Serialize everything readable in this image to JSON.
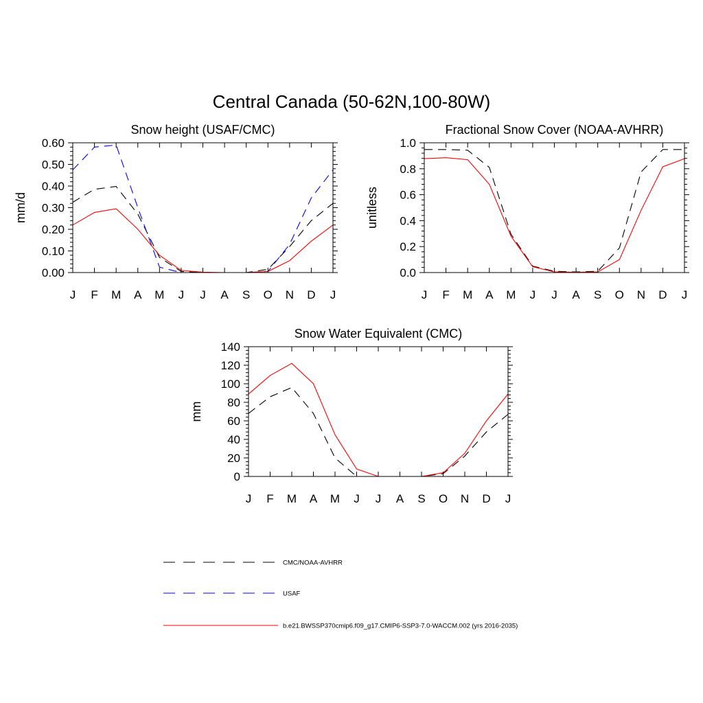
{
  "page": {
    "title": "Central Canada (50-62N,100-80W)"
  },
  "legend": [
    {
      "label": "CMC/NOAA-AVHRR",
      "color": "#000000",
      "dash": "dashed"
    },
    {
      "label": "USAF",
      "color": "#0000ff",
      "dash": "dashed"
    },
    {
      "label": "b.e21.BWSSP370cmip6.f09_g17.CMIP6-SSP3-7.0-WACCM.002 (yrs 2016-2035)",
      "color": "#ff0000",
      "dash": "solid"
    }
  ],
  "chart_data": [
    {
      "type": "line",
      "title": "Snow height (USAF/CMC)",
      "xlabel": "",
      "ylabel": "mm/d",
      "categories": [
        "J",
        "F",
        "M",
        "A",
        "M",
        "J",
        "J",
        "A",
        "S",
        "O",
        "N",
        "D",
        "J"
      ],
      "ylim": [
        0,
        0.6
      ],
      "yticks": [
        0,
        0.1,
        0.2,
        0.3,
        0.4,
        0.5,
        0.6
      ],
      "ytick_labels": [
        "0.00",
        "0.10",
        "0.20",
        "0.30",
        "0.40",
        "0.50",
        "0.60"
      ],
      "series": [
        {
          "name": "CMC/NOAA-AVHRR",
          "color": "#000000",
          "dash": "dashed",
          "values": [
            0.325,
            0.385,
            0.398,
            0.27,
            0.07,
            0.005,
            0.0,
            0.0,
            0.0,
            0.015,
            0.12,
            0.24,
            0.32
          ]
        },
        {
          "name": "USAF",
          "color": "#0000ff",
          "dash": "dashed",
          "values": [
            0.475,
            0.58,
            0.59,
            0.3,
            0.025,
            0.0,
            0.0,
            0.0,
            0.0,
            0.005,
            0.13,
            0.345,
            0.475
          ]
        },
        {
          "name": "b.e21.BWSSP370cmip6.f09_g17.CMIP6-SSP3-7.0-WACCM.002 (yrs 2016-2035)",
          "color": "#ff0000",
          "dash": "solid",
          "values": [
            0.22,
            0.278,
            0.295,
            0.2,
            0.08,
            0.01,
            0.002,
            0.0,
            0.0,
            0.005,
            0.055,
            0.145,
            0.22
          ]
        }
      ]
    },
    {
      "type": "line",
      "title": "Fractional Snow Cover (NOAA-AVHRR)",
      "xlabel": "",
      "ylabel": "unitless",
      "categories": [
        "J",
        "F",
        "M",
        "A",
        "M",
        "J",
        "J",
        "A",
        "S",
        "O",
        "N",
        "D",
        "J"
      ],
      "ylim": [
        0,
        1.0
      ],
      "yticks": [
        0,
        0.2,
        0.4,
        0.6,
        0.8,
        1.0
      ],
      "ytick_labels": [
        "0.0",
        "0.2",
        "0.4",
        "0.6",
        "0.8",
        "1.0"
      ],
      "series": [
        {
          "name": "CMC/NOAA-AVHRR",
          "color": "#000000",
          "dash": "dashed",
          "values": [
            0.948,
            0.948,
            0.943,
            0.81,
            0.295,
            0.05,
            0.01,
            0.005,
            0.01,
            0.19,
            0.775,
            0.948,
            0.948
          ]
        },
        {
          "name": "b.e21.BWSSP370cmip6.f09_g17.CMIP6-SSP3-7.0-WACCM.002 (yrs 2016-2035)",
          "color": "#ff0000",
          "dash": "solid",
          "values": [
            0.878,
            0.885,
            0.87,
            0.68,
            0.28,
            0.045,
            0.005,
            0.002,
            0.005,
            0.1,
            0.48,
            0.815,
            0.878
          ]
        }
      ]
    },
    {
      "type": "line",
      "title": "Snow Water Equivalent (CMC)",
      "xlabel": "",
      "ylabel": "mm",
      "categories": [
        "J",
        "F",
        "M",
        "A",
        "M",
        "J",
        "J",
        "A",
        "S",
        "O",
        "N",
        "D",
        "J"
      ],
      "ylim": [
        0,
        140
      ],
      "yticks": [
        0,
        20,
        40,
        60,
        80,
        100,
        120,
        140
      ],
      "ytick_labels": [
        "0",
        "20",
        "40",
        "60",
        "80",
        "100",
        "120",
        "140"
      ],
      "series": [
        {
          "name": "CMC/NOAA-AVHRR",
          "color": "#000000",
          "dash": "dashed",
          "values": [
            68,
            86,
            96,
            68,
            20,
            0,
            0,
            0,
            0,
            3,
            22,
            48,
            67
          ]
        },
        {
          "name": "b.e21.BWSSP370cmip6.f09_g17.CMIP6-SSP3-7.0-WACCM.002 (yrs 2016-2035)",
          "color": "#ff0000",
          "dash": "solid",
          "values": [
            89,
            109,
            122,
            100,
            45,
            8,
            0,
            0,
            0,
            4,
            25,
            60,
            89
          ]
        }
      ]
    }
  ]
}
